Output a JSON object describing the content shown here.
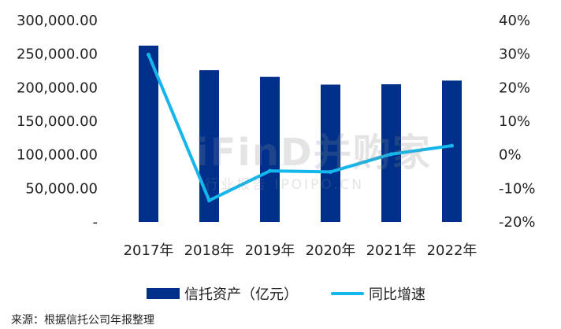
{
  "chart_data": {
    "type": "bar",
    "categories": [
      "2017年",
      "2018年",
      "2019年",
      "2020年",
      "2021年",
      "2022年"
    ],
    "series": [
      {
        "name": "信托资产（亿元）",
        "type": "bar",
        "axis": "left",
        "color": "#00308a",
        "values": [
          262500,
          226000,
          216000,
          204500,
          205000,
          210500
        ]
      },
      {
        "name": "同比增速",
        "type": "line",
        "axis": "right",
        "color": "#14b6ec",
        "values": [
          29.8,
          -13.6,
          -4.8,
          -5.1,
          0.2,
          2.7
        ]
      }
    ],
    "left_axis": {
      "ticks": [
        "-",
        "50,000.00",
        "100,000.00",
        "150,000.00",
        "200,000.00",
        "250,000.00",
        "300,000.00"
      ],
      "ylim": [
        0,
        300000
      ]
    },
    "right_axis": {
      "ticks": [
        "-20%",
        "-10%",
        "0%",
        "10%",
        "20%",
        "30%",
        "40%"
      ],
      "ylim": [
        -20,
        40
      ]
    },
    "grid": false,
    "legend_placement": "bottom"
  },
  "legend": {
    "bar_label": "信托资产（亿元）",
    "line_label": "同比增速"
  },
  "source": "来源：根据信托公司年报整理",
  "watermark": {
    "main": "iFinD并购家",
    "sub": "行业报告 IPOIPO.CN"
  }
}
